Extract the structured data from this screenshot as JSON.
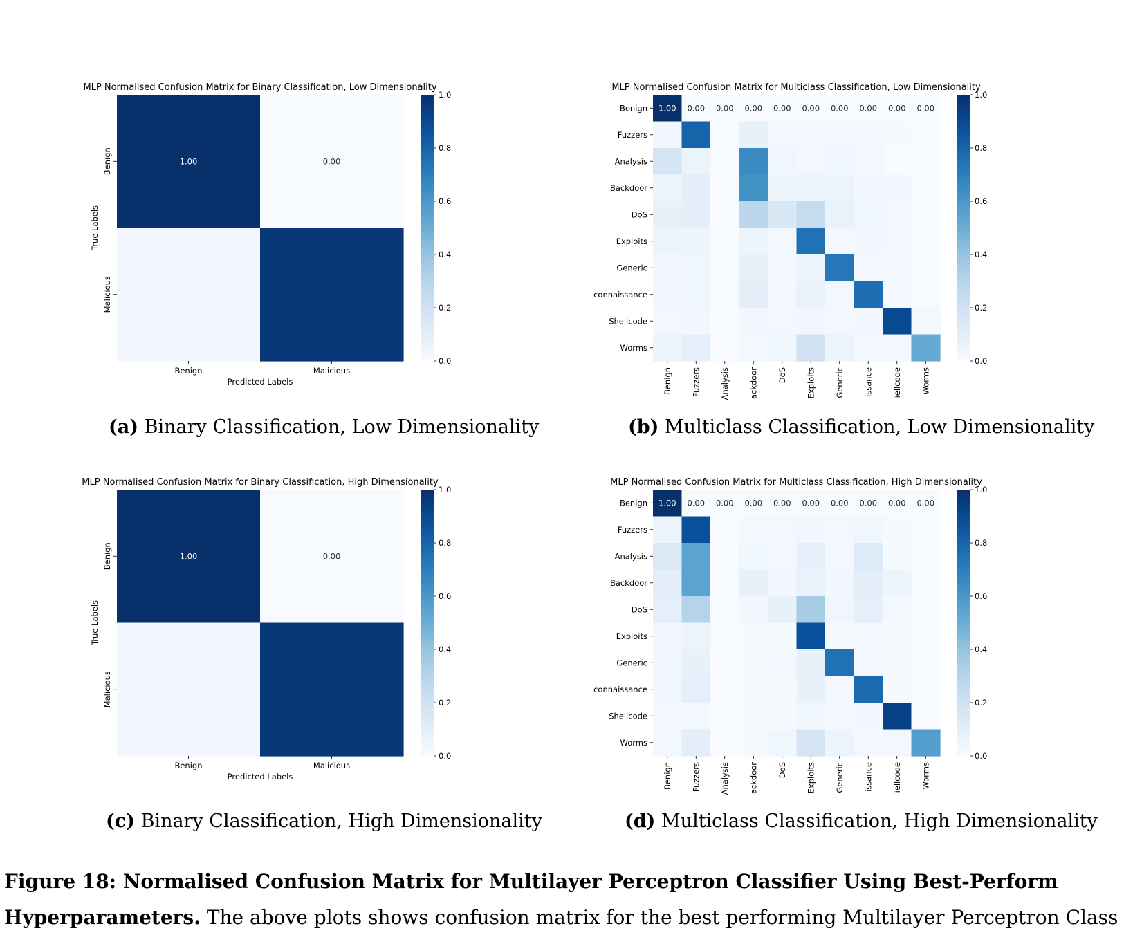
{
  "chart_data": [
    {
      "type": "heatmap",
      "title": "MLP Normalised Confusion Matrix for Binary Classification, Low Dimensionality",
      "xlabel": "Predicted Labels",
      "ylabel": "True Labels",
      "x_categories": [
        "Benign",
        "Malicious"
      ],
      "y_categories": [
        "Benign",
        "Malicious"
      ],
      "matrix": [
        [
          1.0,
          0.0
        ],
        [
          0.03,
          0.97
        ]
      ],
      "annotated_row": 0,
      "cell_labels": [
        "1.00",
        "0.00"
      ],
      "colormap": "Blues",
      "colorbar_ticks": [
        "0.0",
        "0.2",
        "0.4",
        "0.6",
        "0.8",
        "1.0"
      ],
      "vmin": 0,
      "vmax": 1
    },
    {
      "type": "heatmap",
      "title": "MLP Normalised Confusion Matrix for Multiclass Classification, Low Dimensionality",
      "xlabel": "",
      "ylabel": "",
      "x_categories": [
        "Benign",
        "Fuzzers",
        "Analysis",
        "ackdoor",
        "DoS",
        "Exploits",
        "Generic",
        "issance",
        "iellcode",
        "Worms"
      ],
      "y_categories": [
        "Benign",
        "Fuzzers",
        "Analysis",
        "Backdoor",
        "DoS",
        "Exploits",
        "Generic",
        "connaissance",
        "Shellcode",
        "Worms"
      ],
      "matrix": [
        [
          1.0,
          0.0,
          0.0,
          0.0,
          0.0,
          0.0,
          0.0,
          0.0,
          0.0,
          0.0
        ],
        [
          0.03,
          0.8,
          0.0,
          0.08,
          0.02,
          0.02,
          0.02,
          0.02,
          0.01,
          0.0
        ],
        [
          0.17,
          0.06,
          0.0,
          0.65,
          0.04,
          0.02,
          0.04,
          0.02,
          0.0,
          0.0
        ],
        [
          0.05,
          0.1,
          0.0,
          0.63,
          0.06,
          0.05,
          0.06,
          0.03,
          0.03,
          0.0
        ],
        [
          0.08,
          0.1,
          0.0,
          0.28,
          0.15,
          0.25,
          0.07,
          0.04,
          0.02,
          0.0
        ],
        [
          0.05,
          0.05,
          0.0,
          0.05,
          0.02,
          0.75,
          0.02,
          0.03,
          0.02,
          0.0
        ],
        [
          0.03,
          0.04,
          0.0,
          0.08,
          0.02,
          0.05,
          0.73,
          0.02,
          0.02,
          0.0
        ],
        [
          0.03,
          0.04,
          0.0,
          0.1,
          0.02,
          0.07,
          0.02,
          0.76,
          0.02,
          0.0
        ],
        [
          0.02,
          0.03,
          0.0,
          0.03,
          0.02,
          0.03,
          0.02,
          0.03,
          0.9,
          0.02
        ],
        [
          0.05,
          0.09,
          0.0,
          0.02,
          0.04,
          0.2,
          0.05,
          0.02,
          0.02,
          0.52
        ]
      ],
      "annotated_row": 0,
      "cell_labels": [
        "1.00",
        "0.00",
        "0.00",
        "0.00",
        "0.00",
        "0.00",
        "0.00",
        "0.00",
        "0.00",
        "0.00"
      ],
      "colormap": "Blues",
      "colorbar_ticks": [
        "0.0",
        "0.2",
        "0.4",
        "0.6",
        "0.8",
        "1.0"
      ],
      "vmin": 0,
      "vmax": 1
    },
    {
      "type": "heatmap",
      "title": "MLP Normalised Confusion Matrix for Binary Classification, High Dimensionality",
      "xlabel": "Predicted Labels",
      "ylabel": "True Labels",
      "x_categories": [
        "Benign",
        "Malicious"
      ],
      "y_categories": [
        "Benign",
        "Malicious"
      ],
      "matrix": [
        [
          1.0,
          0.0
        ],
        [
          0.03,
          0.97
        ]
      ],
      "annotated_row": 0,
      "cell_labels": [
        "1.00",
        "0.00"
      ],
      "colormap": "Blues",
      "colorbar_ticks": [
        "0.0",
        "0.2",
        "0.4",
        "0.6",
        "0.8",
        "1.0"
      ],
      "vmin": 0,
      "vmax": 1
    },
    {
      "type": "heatmap",
      "title": "MLP Normalised Confusion Matrix for Multiclass Classification, High Dimensionality",
      "xlabel": "",
      "ylabel": "",
      "x_categories": [
        "Benign",
        "Fuzzers",
        "Analysis",
        "ackdoor",
        "DoS",
        "Exploits",
        "Generic",
        "issance",
        "iellcode",
        "Worms"
      ],
      "y_categories": [
        "Benign",
        "Fuzzers",
        "Analysis",
        "Backdoor",
        "DoS",
        "Exploits",
        "Generic",
        "connaissance",
        "Shellcode",
        "Worms"
      ],
      "matrix": [
        [
          1.0,
          0.0,
          0.0,
          0.0,
          0.0,
          0.0,
          0.0,
          0.0,
          0.0,
          0.0
        ],
        [
          0.06,
          0.88,
          0.0,
          0.02,
          0.02,
          0.03,
          0.02,
          0.04,
          0.01,
          0.0
        ],
        [
          0.14,
          0.55,
          0.0,
          0.04,
          0.02,
          0.09,
          0.02,
          0.13,
          0.01,
          0.0
        ],
        [
          0.1,
          0.55,
          0.0,
          0.08,
          0.03,
          0.07,
          0.03,
          0.1,
          0.05,
          0.0
        ],
        [
          0.09,
          0.3,
          0.0,
          0.03,
          0.08,
          0.35,
          0.04,
          0.09,
          0.02,
          0.0
        ],
        [
          0.03,
          0.06,
          0.0,
          0.01,
          0.01,
          0.88,
          0.01,
          0.02,
          0.01,
          0.0
        ],
        [
          0.03,
          0.08,
          0.0,
          0.01,
          0.02,
          0.08,
          0.75,
          0.02,
          0.01,
          0.0
        ],
        [
          0.03,
          0.09,
          0.0,
          0.01,
          0.01,
          0.08,
          0.02,
          0.78,
          0.01,
          0.0
        ],
        [
          0.02,
          0.02,
          0.0,
          0.01,
          0.01,
          0.04,
          0.02,
          0.03,
          0.93,
          0.0
        ],
        [
          0.02,
          0.1,
          0.0,
          0.01,
          0.04,
          0.17,
          0.05,
          0.02,
          0.02,
          0.57
        ]
      ],
      "annotated_row": 0,
      "cell_labels": [
        "1.00",
        "0.00",
        "0.00",
        "0.00",
        "0.00",
        "0.00",
        "0.00",
        "0.00",
        "0.00",
        "0.00"
      ],
      "colormap": "Blues",
      "colorbar_ticks": [
        "0.0",
        "0.2",
        "0.4",
        "0.6",
        "0.8",
        "1.0"
      ],
      "vmin": 0,
      "vmax": 1
    }
  ],
  "subcaptions": [
    {
      "label": "(a)",
      "text": "Binary Classification, Low Dimensionality"
    },
    {
      "label": "(b)",
      "text": "Multiclass Classification, Low Dimensionality"
    },
    {
      "label": "(c)",
      "text": "Binary Classification, High Dimensionality"
    },
    {
      "label": "(d)",
      "text": "Multiclass Classification, High Dimensionality"
    }
  ],
  "figure_caption": {
    "line1_bold": "Figure 18: Normalised Confusion Matrix for Multilayer Perceptron Classifier Using Best-Perform",
    "line2_bold": "Hyperparameters.",
    "line2_rest": " The above plots shows confusion matrix for the best performing Multilayer Perceptron Class"
  }
}
